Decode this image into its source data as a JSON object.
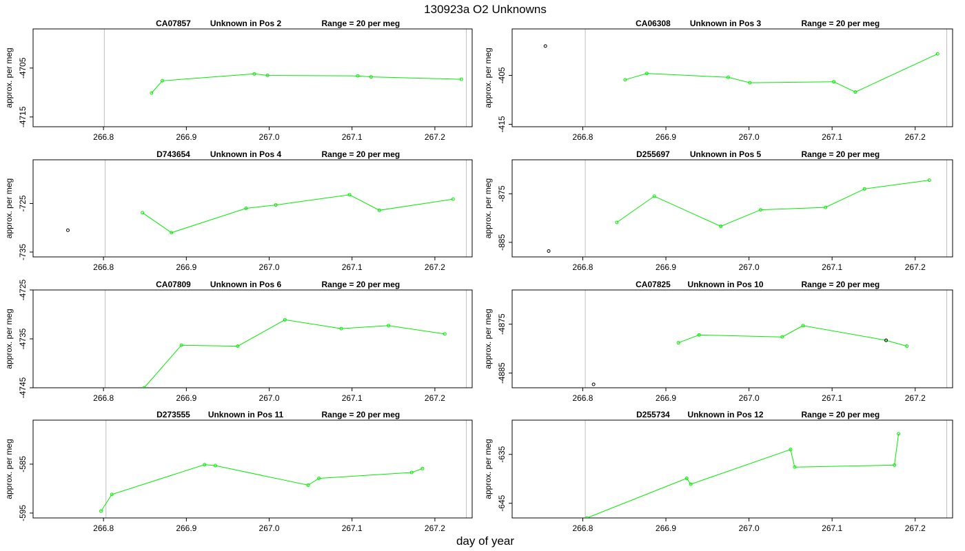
{
  "figure": {
    "title": "130923a  O2 Unknowns",
    "xlabel": "day of year",
    "ylabel": "approx. per meg"
  },
  "colors": {
    "series": "#00ee00",
    "outlier": "#000000",
    "vline": "#bdbdbd",
    "frame": "#000000"
  },
  "chart_data": [
    {
      "type": "line",
      "id_text": "CA07857",
      "pos_text": "Unknown in Pos 2",
      "range_text": "Range = 20 per meg",
      "xlim": [
        266.715,
        267.245
      ],
      "ylim": [
        -4717,
        -4697
      ],
      "xticks": [
        266.8,
        266.9,
        267.0,
        267.1,
        267.2
      ],
      "xtick_labels": [
        "266.8",
        "266.9",
        "267.0",
        "267.1",
        "267.2"
      ],
      "yticks": [
        -4705,
        -4715
      ],
      "ytick_labels": [
        "-4705",
        "-4715"
      ],
      "vlines": [
        266.801,
        267.238
      ],
      "series": [
        {
          "x": [
            266.858,
            266.871,
            266.982,
            266.998,
            267.107,
            267.123,
            267.232
          ],
          "y": [
            -4710.1,
            -4707.6,
            -4706.2,
            -4706.5,
            -4706.6,
            -4706.8,
            -4707.3
          ]
        }
      ],
      "outliers": []
    },
    {
      "type": "line",
      "id_text": "CA06308",
      "pos_text": "Unknown in Pos 3",
      "range_text": "Range = 20 per meg",
      "xlim": [
        266.715,
        267.245
      ],
      "ylim": [
        -415.5,
        -395.5
      ],
      "xticks": [
        266.8,
        266.9,
        267.0,
        267.1,
        267.2
      ],
      "xtick_labels": [
        "266.8",
        "266.9",
        "267.0",
        "267.1",
        "267.2"
      ],
      "yticks": [
        -405,
        -415
      ],
      "ytick_labels": [
        "-405",
        "-415"
      ],
      "vlines": [
        266.803,
        267.238
      ],
      "series": [
        {
          "x": [
            266.851,
            266.877,
            266.975,
            267.001,
            267.102,
            267.128,
            267.227
          ],
          "y": [
            -405.9,
            -404.6,
            -405.4,
            -406.5,
            -406.3,
            -408.4,
            -400.6
          ]
        }
      ],
      "outliers": [
        {
          "x": 266.755,
          "y": -399.0
        }
      ]
    },
    {
      "type": "line",
      "id_text": "D743654",
      "pos_text": "Unknown in Pos 4",
      "range_text": "Range = 20 per meg",
      "xlim": [
        266.715,
        267.245
      ],
      "ylim": [
        -736,
        -716
      ],
      "xticks": [
        266.8,
        266.9,
        267.0,
        267.1,
        267.2
      ],
      "xtick_labels": [
        "266.8",
        "266.9",
        "267.0",
        "267.1",
        "267.2"
      ],
      "yticks": [
        -725,
        -735
      ],
      "ytick_labels": [
        "-725",
        "-735"
      ],
      "vlines": [
        266.802,
        267.238
      ],
      "series": [
        {
          "x": [
            266.847,
            266.882,
            266.972,
            267.008,
            267.097,
            267.133,
            267.222
          ],
          "y": [
            -726.9,
            -731.0,
            -726.0,
            -725.3,
            -723.2,
            -726.4,
            -724.1
          ]
        }
      ],
      "outliers": [
        {
          "x": 266.757,
          "y": -730.5
        }
      ]
    },
    {
      "type": "line",
      "id_text": "D255697",
      "pos_text": "Unknown in Pos 5",
      "range_text": "Range = 20 per meg",
      "xlim": [
        266.715,
        267.245
      ],
      "ylim": [
        -888,
        -868
      ],
      "xticks": [
        266.8,
        266.9,
        267.0,
        267.1,
        267.2
      ],
      "xtick_labels": [
        "266.8",
        "266.9",
        "267.0",
        "267.1",
        "267.2"
      ],
      "yticks": [
        -875,
        -885
      ],
      "ytick_labels": [
        "-875",
        "-885"
      ],
      "vlines": [
        266.803,
        267.238
      ],
      "series": [
        {
          "x": [
            266.841,
            266.886,
            266.966,
            267.014,
            267.092,
            267.139,
            267.217
          ],
          "y": [
            -880.9,
            -875.5,
            -881.7,
            -878.3,
            -877.8,
            -874.0,
            -872.2
          ]
        }
      ],
      "outliers": [
        {
          "x": 266.759,
          "y": -886.8
        }
      ]
    },
    {
      "type": "line",
      "id_text": "CA07809",
      "pos_text": "Unknown in Pos 6",
      "range_text": "Range = 20 per meg",
      "xlim": [
        266.715,
        267.245
      ],
      "ylim": [
        -4745,
        -4725
      ],
      "xticks": [
        266.8,
        266.9,
        267.0,
        267.1,
        267.2
      ],
      "xtick_labels": [
        "266.8",
        "266.9",
        "267.0",
        "267.1",
        "267.2"
      ],
      "yticks": [
        -4725,
        -4735,
        -4745
      ],
      "ytick_labels": [
        "-4725",
        "-4735",
        "-4745"
      ],
      "vlines": [
        266.802,
        267.238
      ],
      "series": [
        {
          "x": [
            266.849,
            266.894,
            266.962,
            267.019,
            267.087,
            267.144,
            267.212
          ],
          "y": [
            -4745.0,
            -4736.3,
            -4736.5,
            -4731.1,
            -4732.9,
            -4732.3,
            -4734.0
          ]
        }
      ],
      "outliers": []
    },
    {
      "type": "line",
      "id_text": "CA07825",
      "pos_text": "Unknown in Pos 10",
      "range_text": "Range = 20 per meg",
      "xlim": [
        266.715,
        267.245
      ],
      "ylim": [
        -4888,
        -4868
      ],
      "xticks": [
        266.8,
        266.9,
        267.0,
        267.1,
        267.2
      ],
      "xtick_labels": [
        "266.8",
        "266.9",
        "267.0",
        "267.1",
        "267.2"
      ],
      "yticks": [
        -4875,
        -4885
      ],
      "ytick_labels": [
        "-4875",
        "-4885"
      ],
      "vlines": [
        266.803,
        267.238
      ],
      "series": [
        {
          "x": [
            266.915,
            266.94,
            267.04,
            267.065,
            267.165,
            267.19
          ],
          "y": [
            -4878.8,
            -4877.2,
            -4877.6,
            -4875.3,
            -4878.3,
            -4879.5
          ]
        }
      ],
      "outliers": [
        {
          "x": 266.813,
          "y": -4887.3
        },
        {
          "x": 267.165,
          "y": -4878.3
        }
      ]
    },
    {
      "type": "line",
      "id_text": "D273555",
      "pos_text": "Unknown in Pos 11",
      "range_text": "Range = 20 per meg",
      "xlim": [
        266.715,
        267.245
      ],
      "ylim": [
        -596,
        -576
      ],
      "xticks": [
        266.8,
        266.9,
        267.0,
        267.1,
        267.2
      ],
      "xtick_labels": [
        "266.8",
        "266.9",
        "267.0",
        "267.1",
        "267.2"
      ],
      "yticks": [
        -585,
        -595
      ],
      "ytick_labels": [
        "-585",
        "-595"
      ],
      "vlines": [
        266.803,
        267.238
      ],
      "series": [
        {
          "x": [
            266.797,
            266.81,
            266.922,
            266.935,
            267.047,
            267.06,
            267.172,
            267.185
          ],
          "y": [
            -594.6,
            -591.2,
            -585.1,
            -585.3,
            -589.3,
            -587.9,
            -586.7,
            -585.9
          ]
        }
      ],
      "outliers": []
    },
    {
      "type": "line",
      "id_text": "D255734",
      "pos_text": "Unknown in Pos 12",
      "range_text": "Range = 20 per meg",
      "xlim": [
        266.715,
        267.245
      ],
      "ylim": [
        -648,
        -628
      ],
      "xticks": [
        266.8,
        266.9,
        267.0,
        267.1,
        267.2
      ],
      "xtick_labels": [
        "266.8",
        "266.9",
        "267.0",
        "267.1",
        "267.2"
      ],
      "yticks": [
        -635,
        -645
      ],
      "ytick_labels": [
        "-635",
        "-645"
      ],
      "vlines": [
        266.803,
        267.238
      ],
      "series": [
        {
          "x": [
            266.805,
            266.925,
            266.93,
            267.05,
            267.055,
            267.175,
            267.18
          ],
          "y": [
            -648.0,
            -639.9,
            -641.1,
            -634.0,
            -637.6,
            -637.2,
            -630.8
          ]
        }
      ],
      "outliers": []
    }
  ]
}
